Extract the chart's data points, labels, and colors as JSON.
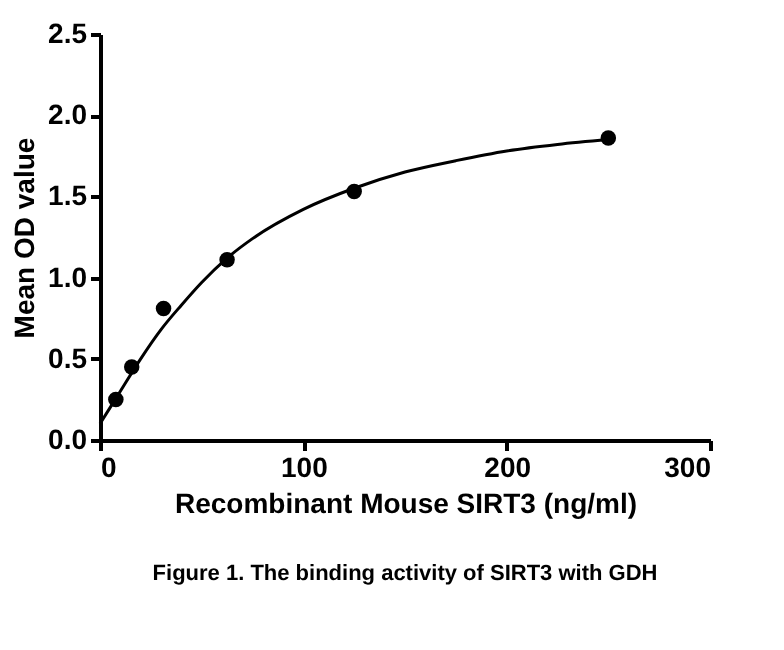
{
  "chart_data": {
    "type": "scatter",
    "xlabel": "Recombinant Mouse SIRT3 (ng/ml)",
    "ylabel": "Mean OD value",
    "annotations": [
      "Figure 1. The binding activity of SIRT3 with GDH"
    ],
    "x": [
      7.8,
      15.6,
      31.25,
      62.5,
      125,
      250
    ],
    "series": [
      {
        "color": "#000000",
        "marker": "circle",
        "values": [
          0.25,
          0.45,
          0.81,
          1.11,
          1.53,
          1.86
        ]
      },
      {
        "type": "line",
        "color": "#000000",
        "marker": "none",
        "x": [
          0,
          10,
          20,
          30,
          40,
          50,
          62.5,
          75,
          100,
          125,
          150,
          175,
          200,
          225,
          250
        ],
        "values": [
          0.1,
          0.3,
          0.5,
          0.68,
          0.83,
          0.97,
          1.12,
          1.24,
          1.42,
          1.55,
          1.65,
          1.72,
          1.78,
          1.82,
          1.85
        ]
      }
    ],
    "xlim": [
      0,
      300
    ],
    "xticks": [
      0,
      100,
      200,
      300
    ],
    "ylim": [
      0,
      2.5
    ],
    "yticks": [
      {
        "value": 0,
        "label": "0.0"
      },
      {
        "value": 0.5,
        "label": "0.5"
      },
      {
        "value": 1,
        "label": "1.0"
      },
      {
        "value": 1.5,
        "label": "1.5"
      },
      {
        "value": 2,
        "label": "2.0"
      },
      {
        "value": 2.5,
        "label": "2.5"
      }
    ],
    "grid": false
  }
}
